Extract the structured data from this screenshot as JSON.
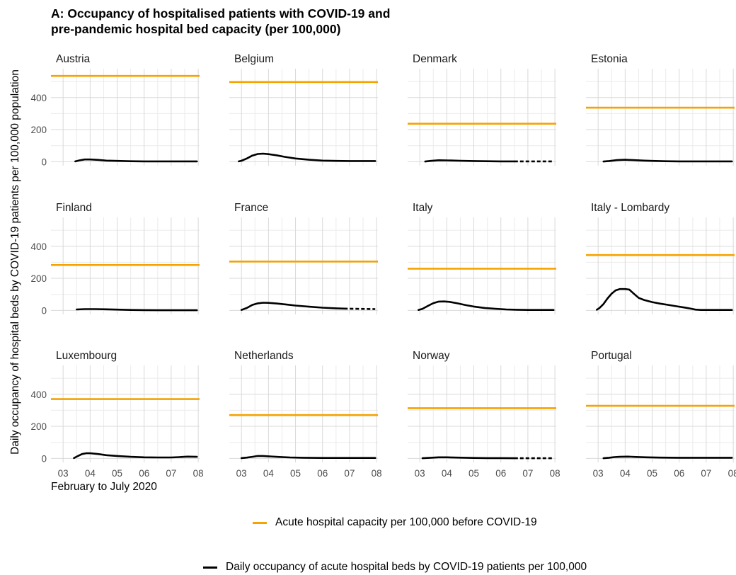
{
  "chart_data": {
    "type": "line",
    "title": "A: Occupancy of hospitalised patients with COVID-19 and pre-pandemic hospital bed capacity (per 100,000)",
    "title_lines": [
      "A: Occupancy of hospitalised patients with COVID-19 and",
      "pre-pandemic hospital bed capacity (per 100,000)"
    ],
    "ylabel": "Daily occupancy of hospital beds by COVID-19 patients per 100,000 population",
    "xlabel": "February to July 2020",
    "x_ticks": [
      "03",
      "04",
      "05",
      "06",
      "07",
      "08"
    ],
    "y_ticks": [
      0,
      200,
      400
    ],
    "xlim": [
      2.55,
      8.05
    ],
    "ylim": [
      -25,
      580
    ],
    "grid": true,
    "legend_position": "bottom",
    "colors": {
      "capacity": "#F5A300",
      "occupancy": "#000000",
      "grid": "#d9d9d9",
      "text": "#4d4d4d"
    },
    "legend": [
      {
        "label": "Acute hospital capacity per 100,000 before COVID-19",
        "color": "#F5A300"
      },
      {
        "label": "Daily occupancy of acute hospital beds by COVID-19 patients per 100,000",
        "color": "#000000"
      }
    ],
    "panels": [
      {
        "name": "Austria",
        "capacity": 535,
        "occupancy": [
          [
            3.45,
            2
          ],
          [
            3.6,
            8
          ],
          [
            3.8,
            14
          ],
          [
            4.0,
            14
          ],
          [
            4.3,
            11
          ],
          [
            4.6,
            7
          ],
          [
            5.0,
            5
          ],
          [
            5.5,
            3
          ],
          [
            6.0,
            2
          ],
          [
            6.5,
            2
          ],
          [
            7.0,
            2
          ],
          [
            7.5,
            2
          ],
          [
            7.95,
            2
          ]
        ]
      },
      {
        "name": "Belgium",
        "capacity": 497,
        "occupancy": [
          [
            2.9,
            2
          ],
          [
            3.0,
            6
          ],
          [
            3.2,
            20
          ],
          [
            3.4,
            38
          ],
          [
            3.6,
            48
          ],
          [
            3.8,
            50
          ],
          [
            4.0,
            47
          ],
          [
            4.3,
            40
          ],
          [
            4.6,
            30
          ],
          [
            5.0,
            20
          ],
          [
            5.5,
            12
          ],
          [
            6.0,
            7
          ],
          [
            6.5,
            5
          ],
          [
            7.0,
            4
          ],
          [
            7.5,
            4
          ],
          [
            7.95,
            4
          ]
        ]
      },
      {
        "name": "Denmark",
        "capacity": 237,
        "occupancy": [
          [
            3.2,
            1
          ],
          [
            3.4,
            5
          ],
          [
            3.7,
            9
          ],
          [
            4.0,
            8
          ],
          [
            4.5,
            6
          ],
          [
            5.0,
            4
          ],
          [
            5.5,
            3
          ],
          [
            6.0,
            2
          ],
          [
            6.5,
            2
          ]
        ],
        "occupancy_dashed": [
          [
            6.5,
            2
          ],
          [
            7.0,
            2
          ],
          [
            7.5,
            2
          ],
          [
            7.95,
            2
          ]
        ]
      },
      {
        "name": "Estonia",
        "capacity": 337,
        "occupancy": [
          [
            3.2,
            1
          ],
          [
            3.4,
            4
          ],
          [
            3.7,
            10
          ],
          [
            4.0,
            12
          ],
          [
            4.3,
            10
          ],
          [
            4.7,
            7
          ],
          [
            5.0,
            5
          ],
          [
            5.5,
            3
          ],
          [
            6.0,
            2
          ],
          [
            6.5,
            2
          ],
          [
            7.0,
            2
          ],
          [
            7.5,
            2
          ],
          [
            7.95,
            2
          ]
        ]
      },
      {
        "name": "Finland",
        "capacity": 283,
        "occupancy": [
          [
            3.5,
            6
          ],
          [
            3.8,
            8
          ],
          [
            4.2,
            8
          ],
          [
            4.6,
            7
          ],
          [
            5.0,
            5
          ],
          [
            5.5,
            3
          ],
          [
            6.0,
            2
          ],
          [
            6.5,
            1
          ],
          [
            7.0,
            1
          ],
          [
            7.5,
            1
          ],
          [
            7.95,
            1
          ]
        ]
      },
      {
        "name": "France",
        "capacity": 305,
        "occupancy": [
          [
            3.0,
            3
          ],
          [
            3.2,
            15
          ],
          [
            3.4,
            34
          ],
          [
            3.6,
            44
          ],
          [
            3.8,
            48
          ],
          [
            4.0,
            47
          ],
          [
            4.3,
            43
          ],
          [
            4.7,
            36
          ],
          [
            5.0,
            30
          ],
          [
            5.5,
            23
          ],
          [
            6.0,
            17
          ],
          [
            6.5,
            13
          ],
          [
            6.8,
            11
          ]
        ],
        "occupancy_dashed": [
          [
            6.8,
            11
          ],
          [
            7.2,
            10
          ],
          [
            7.6,
            9
          ],
          [
            7.95,
            8
          ]
        ]
      },
      {
        "name": "Italy",
        "capacity": 260,
        "occupancy": [
          [
            2.95,
            3
          ],
          [
            3.1,
            10
          ],
          [
            3.3,
            28
          ],
          [
            3.5,
            45
          ],
          [
            3.7,
            55
          ],
          [
            3.9,
            56
          ],
          [
            4.1,
            53
          ],
          [
            4.4,
            44
          ],
          [
            4.7,
            33
          ],
          [
            5.0,
            24
          ],
          [
            5.4,
            15
          ],
          [
            5.8,
            10
          ],
          [
            6.2,
            6
          ],
          [
            6.6,
            4
          ],
          [
            7.0,
            3
          ],
          [
            7.5,
            3
          ],
          [
            7.95,
            3
          ]
        ]
      },
      {
        "name": "Italy - Lombardy",
        "capacity": 345,
        "occupancy": [
          [
            2.95,
            4
          ],
          [
            3.05,
            15
          ],
          [
            3.2,
            40
          ],
          [
            3.35,
            75
          ],
          [
            3.5,
            105
          ],
          [
            3.65,
            125
          ],
          [
            3.8,
            133
          ],
          [
            4.0,
            133
          ],
          [
            4.15,
            130
          ],
          [
            4.25,
            115
          ],
          [
            4.35,
            100
          ],
          [
            4.5,
            78
          ],
          [
            4.7,
            65
          ],
          [
            5.0,
            52
          ],
          [
            5.3,
            42
          ],
          [
            5.6,
            34
          ],
          [
            5.9,
            26
          ],
          [
            6.2,
            18
          ],
          [
            6.4,
            12
          ],
          [
            6.6,
            5
          ],
          [
            6.8,
            3
          ],
          [
            7.2,
            3
          ],
          [
            7.6,
            3
          ],
          [
            7.95,
            3
          ]
        ]
      },
      {
        "name": "Luxembourg",
        "capacity": 370,
        "occupancy": [
          [
            3.4,
            2
          ],
          [
            3.55,
            15
          ],
          [
            3.7,
            27
          ],
          [
            3.85,
            32
          ],
          [
            4.0,
            32
          ],
          [
            4.3,
            27
          ],
          [
            4.6,
            20
          ],
          [
            5.0,
            15
          ],
          [
            5.5,
            10
          ],
          [
            6.0,
            7
          ],
          [
            6.5,
            6
          ],
          [
            7.0,
            6
          ],
          [
            7.3,
            8
          ],
          [
            7.6,
            11
          ],
          [
            7.95,
            10
          ]
        ]
      },
      {
        "name": "Netherlands",
        "capacity": 270,
        "occupancy": [
          [
            3.0,
            2
          ],
          [
            3.2,
            5
          ],
          [
            3.4,
            10
          ],
          [
            3.6,
            15
          ],
          [
            3.8,
            15
          ],
          [
            4.0,
            13
          ],
          [
            4.4,
            9
          ],
          [
            4.8,
            6
          ],
          [
            5.3,
            4
          ],
          [
            6.0,
            3
          ],
          [
            6.5,
            3
          ],
          [
            7.0,
            3
          ],
          [
            7.5,
            3
          ],
          [
            7.95,
            3
          ]
        ]
      },
      {
        "name": "Norway",
        "capacity": 313,
        "occupancy": [
          [
            3.1,
            1
          ],
          [
            3.4,
            4
          ],
          [
            3.7,
            7
          ],
          [
            4.0,
            7
          ],
          [
            4.4,
            5
          ],
          [
            5.0,
            3
          ],
          [
            5.5,
            2
          ],
          [
            6.0,
            2
          ],
          [
            6.5,
            1
          ]
        ],
        "occupancy_dashed": [
          [
            6.5,
            1
          ],
          [
            7.0,
            1
          ],
          [
            7.5,
            1
          ],
          [
            7.95,
            1
          ]
        ]
      },
      {
        "name": "Portugal",
        "capacity": 328,
        "occupancy": [
          [
            3.2,
            1
          ],
          [
            3.4,
            4
          ],
          [
            3.6,
            8
          ],
          [
            3.8,
            10
          ],
          [
            4.1,
            11
          ],
          [
            4.4,
            9
          ],
          [
            4.8,
            7
          ],
          [
            5.3,
            5
          ],
          [
            6.0,
            4
          ],
          [
            6.5,
            4
          ],
          [
            7.0,
            4
          ],
          [
            7.5,
            4
          ],
          [
            7.95,
            4
          ]
        ]
      }
    ]
  }
}
